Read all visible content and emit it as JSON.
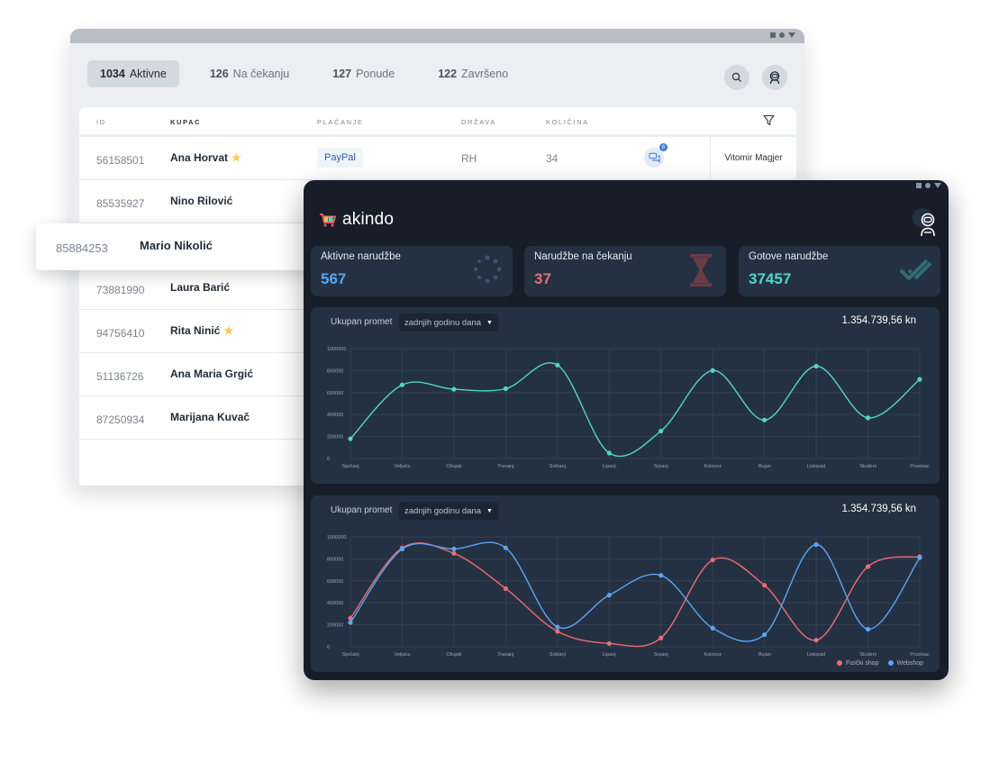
{
  "orders_window": {
    "tabs": [
      {
        "count": "1034",
        "label": "Aktivne"
      },
      {
        "count": "126",
        "label": "Na čekanju"
      },
      {
        "count": "127",
        "label": "Ponude"
      },
      {
        "count": "122",
        "label": "Završeno"
      }
    ],
    "headers": {
      "id": "ID",
      "customer": "KUPAC",
      "payment": "PLAĆANJE",
      "country": "DRŽAVA",
      "quantity": "KOLIČINA"
    },
    "rows": [
      {
        "id": "56158501",
        "name": "Ana Horvat",
        "starred": true,
        "payment": "PayPal",
        "country": "RH",
        "quantity": "34",
        "chat_badge": "6",
        "assignee": "Vitomir Magjer"
      },
      {
        "id": "85535927",
        "name": "Nino Rilović"
      },
      {
        "id": "73881990",
        "name": "Laura Barić"
      },
      {
        "id": "94756410",
        "name": "Rita Ninić",
        "starred": true
      },
      {
        "id": "51136726",
        "name": "Ana Maria Grgić"
      },
      {
        "id": "87250934",
        "name": "Marijana Kuvač"
      }
    ],
    "highlighted_row": {
      "id": "85884253",
      "name": "Mario Nikolić"
    }
  },
  "dashboard": {
    "brand": "akindo",
    "stats": [
      {
        "label": "Aktivne narudžbe",
        "value": "567",
        "color": "#5aa5f5",
        "icon": "spinner-icon"
      },
      {
        "label": "Narudžbe na čekanju",
        "value": "37",
        "color": "#ef6b6b",
        "icon": "hourglass-icon"
      },
      {
        "label": "Gotove narudžbe",
        "value": "37457",
        "color": "#4fd8c4",
        "icon": "double-check-icon"
      }
    ],
    "range_select": "zadnjih godinu dana",
    "chart_title": "Ukupan promet",
    "chart_total": "1.354.739,56 kn"
  },
  "chart_data": [
    {
      "type": "line",
      "title": "Ukupan promet",
      "categories": [
        "Siječanj",
        "Veljača",
        "Ožujak",
        "Travanj",
        "Svibanj",
        "Lipanj",
        "Srpanj",
        "Kolovoz",
        "Rujan",
        "Listopad",
        "Studeni",
        "Prosinac"
      ],
      "yticks": [
        "0",
        "200000",
        "400000",
        "600000",
        "800000",
        "1000000"
      ],
      "ylim": [
        0,
        1000000
      ],
      "grid": true,
      "series": [
        {
          "color": "#4fd8c4",
          "values": [
            180000,
            670000,
            630000,
            635000,
            850000,
            50000,
            250000,
            800000,
            350000,
            840000,
            370000,
            720000
          ]
        }
      ]
    },
    {
      "type": "line",
      "title": "Ukupan promet",
      "categories": [
        "Siječanj",
        "Veljača",
        "Ožujak",
        "Travanj",
        "Svibanj",
        "Lipanj",
        "Srpanj",
        "Kolovoz",
        "Rujan",
        "Listopad",
        "Studeni",
        "Prosinac"
      ],
      "yticks": [
        "0",
        "200000",
        "400000",
        "600000",
        "800000",
        "1000000"
      ],
      "ylim": [
        0,
        1000000
      ],
      "grid": true,
      "legend": "bottom-right",
      "series": [
        {
          "name": "Fizički shop",
          "color": "#f06a72",
          "values": [
            260000,
            900000,
            850000,
            530000,
            140000,
            30000,
            80000,
            790000,
            560000,
            60000,
            730000,
            820000
          ]
        },
        {
          "name": "Webshop",
          "color": "#5aa5f5",
          "values": [
            220000,
            890000,
            890000,
            900000,
            180000,
            470000,
            650000,
            170000,
            110000,
            930000,
            160000,
            810000
          ]
        }
      ]
    }
  ]
}
